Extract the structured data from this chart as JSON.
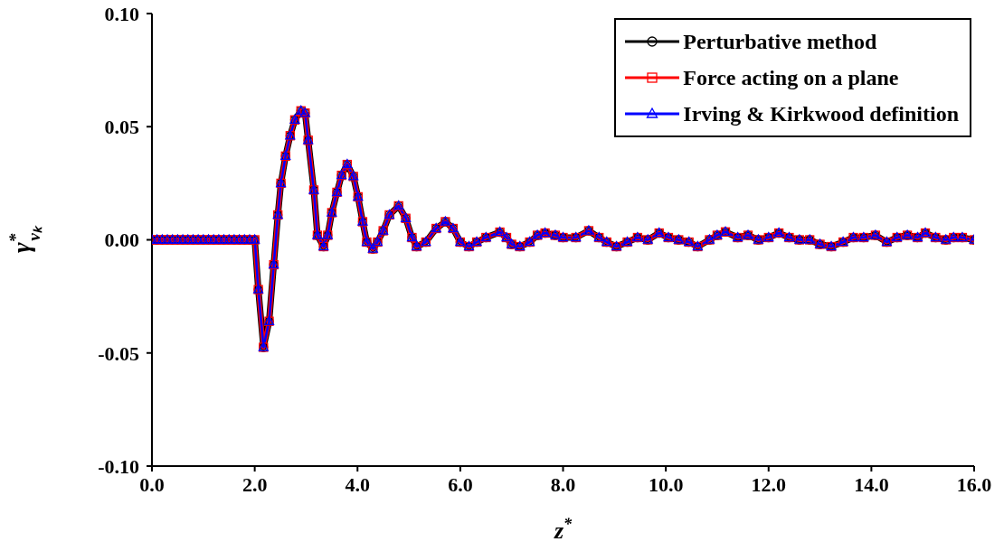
{
  "chart_data": {
    "type": "line",
    "xlabel": "z$^{*}$",
    "ylabel": "γ$^{*}$$_{vₖ}$",
    "x": [
      0,
      0.1,
      0.2,
      0.3,
      0.4,
      0.5,
      0.6,
      0.7,
      0.8,
      0.9,
      1.0,
      1.1,
      1.2,
      1.3,
      1.4,
      1.5,
      1.6,
      1.7,
      1.8,
      1.9,
      2.0,
      2.07,
      2.17,
      2.28,
      2.37,
      2.45,
      2.51,
      2.6,
      2.69,
      2.78,
      2.9,
      2.98,
      3.04,
      3.15,
      3.22,
      3.34,
      3.42,
      3.5,
      3.6,
      3.69,
      3.8,
      3.92,
      4.01,
      4.1,
      4.18,
      4.3,
      4.39,
      4.5,
      4.62,
      4.8,
      4.94,
      5.06,
      5.15,
      5.33,
      5.53,
      5.71,
      5.86,
      6.0,
      6.17,
      6.32,
      6.5,
      6.77,
      6.9,
      7.0,
      7.16,
      7.35,
      7.5,
      7.65,
      7.85,
      8.0,
      8.25,
      8.5,
      8.7,
      8.85,
      9.04,
      9.25,
      9.45,
      9.65,
      9.87,
      10.05,
      10.25,
      10.45,
      10.62,
      10.85,
      11.0,
      11.16,
      11.4,
      11.6,
      11.8,
      12.0,
      12.2,
      12.4,
      12.6,
      12.8,
      13.0,
      13.22,
      13.45,
      13.65,
      13.85,
      14.08,
      14.3,
      14.5,
      14.7,
      14.9,
      15.05,
      15.25,
      15.45,
      15.6,
      15.77,
      16.0
    ],
    "series": [
      {
        "name": "Perturbative method",
        "color": "#000000",
        "marker": "circle",
        "values": [
          0,
          0,
          0,
          0,
          0,
          0,
          0,
          0,
          0,
          0,
          0,
          0,
          0,
          0,
          0,
          0,
          0,
          0,
          0,
          0,
          0,
          -0.022,
          -0.0475,
          -0.036,
          -0.011,
          0.011,
          0.025,
          0.037,
          0.046,
          0.053,
          0.057,
          0.056,
          0.044,
          0.022,
          0.002,
          -0.003,
          0.002,
          0.012,
          0.021,
          0.0285,
          0.0333,
          0.028,
          0.019,
          0.008,
          -0.001,
          -0.004,
          -0.001,
          0.004,
          0.011,
          0.015,
          0.0095,
          0.001,
          -0.003,
          -0.001,
          0.005,
          0.008,
          0.005,
          -0.001,
          -0.003,
          -0.001,
          0.001,
          0.0034,
          0.001,
          -0.002,
          -0.003,
          -0.001,
          0.002,
          0.003,
          0.002,
          0.001,
          0.001,
          0.004,
          0.001,
          -0.001,
          -0.003,
          -0.001,
          0.001,
          0,
          0.003,
          0.001,
          0,
          -0.001,
          -0.003,
          0,
          0.002,
          0.0035,
          0.001,
          0.002,
          0,
          0.001,
          0.003,
          0.001,
          0,
          0,
          -0.002,
          -0.003,
          -0.001,
          0.001,
          0.001,
          0.002,
          -0.001,
          0.001,
          0.002,
          0.001,
          0.003,
          0.001,
          0,
          0.001,
          0.001,
          0
        ]
      },
      {
        "name": "Force acting on a plane",
        "color": "#ff0000",
        "marker": "square",
        "values": [
          0,
          0,
          0,
          0,
          0,
          0,
          0,
          0,
          0,
          0,
          0,
          0,
          0,
          0,
          0,
          0,
          0,
          0,
          0,
          0,
          0,
          -0.022,
          -0.0475,
          -0.036,
          -0.011,
          0.011,
          0.025,
          0.037,
          0.046,
          0.053,
          0.057,
          0.056,
          0.044,
          0.022,
          0.002,
          -0.003,
          0.002,
          0.012,
          0.021,
          0.0285,
          0.0333,
          0.028,
          0.019,
          0.008,
          -0.001,
          -0.004,
          -0.001,
          0.004,
          0.011,
          0.015,
          0.0095,
          0.001,
          -0.003,
          -0.001,
          0.005,
          0.008,
          0.005,
          -0.001,
          -0.003,
          -0.001,
          0.001,
          0.0034,
          0.001,
          -0.002,
          -0.003,
          -0.001,
          0.002,
          0.003,
          0.002,
          0.001,
          0.001,
          0.004,
          0.001,
          -0.001,
          -0.003,
          -0.001,
          0.001,
          0,
          0.003,
          0.001,
          0,
          -0.001,
          -0.003,
          0,
          0.002,
          0.0035,
          0.001,
          0.002,
          0,
          0.001,
          0.003,
          0.001,
          0,
          0,
          -0.002,
          -0.003,
          -0.001,
          0.001,
          0.001,
          0.002,
          -0.001,
          0.001,
          0.002,
          0.001,
          0.003,
          0.001,
          0,
          0.001,
          0.001,
          0
        ]
      },
      {
        "name": "Irving & Kirkwood definition",
        "color": "#0000ff",
        "marker": "triangle",
        "values": [
          0,
          0,
          0,
          0,
          0,
          0,
          0,
          0,
          0,
          0,
          0,
          0,
          0,
          0,
          0,
          0,
          0,
          0,
          0,
          0,
          0,
          -0.022,
          -0.0475,
          -0.036,
          -0.011,
          0.011,
          0.025,
          0.037,
          0.046,
          0.053,
          0.057,
          0.056,
          0.044,
          0.022,
          0.002,
          -0.003,
          0.002,
          0.012,
          0.021,
          0.0285,
          0.0333,
          0.028,
          0.019,
          0.008,
          -0.001,
          -0.004,
          -0.001,
          0.004,
          0.011,
          0.015,
          0.0095,
          0.001,
          -0.003,
          -0.001,
          0.005,
          0.008,
          0.005,
          -0.001,
          -0.003,
          -0.001,
          0.001,
          0.0034,
          0.001,
          -0.002,
          -0.003,
          -0.001,
          0.002,
          0.003,
          0.002,
          0.001,
          0.001,
          0.004,
          0.001,
          -0.001,
          -0.003,
          -0.001,
          0.001,
          0,
          0.003,
          0.001,
          0,
          -0.001,
          -0.003,
          0,
          0.002,
          0.0035,
          0.001,
          0.002,
          0,
          0.001,
          0.003,
          0.001,
          0,
          0,
          -0.002,
          -0.003,
          -0.001,
          0.001,
          0.001,
          0.002,
          -0.001,
          0.001,
          0.002,
          0.001,
          0.003,
          0.001,
          0,
          0.001,
          0.001,
          0
        ]
      }
    ],
    "xlim": [
      0,
      16
    ],
    "xticks": [
      {
        "value": 0,
        "label": "0.0"
      },
      {
        "value": 2,
        "label": "2.0"
      },
      {
        "value": 4,
        "label": "4.0"
      },
      {
        "value": 6,
        "label": "6.0"
      },
      {
        "value": 8,
        "label": "8.0"
      },
      {
        "value": 10,
        "label": "10.0"
      },
      {
        "value": 12,
        "label": "12.0"
      },
      {
        "value": 14,
        "label": "14.0"
      },
      {
        "value": 16,
        "label": "16.0"
      }
    ],
    "ylim": [
      -0.1,
      0.1
    ],
    "yticks": [
      {
        "value": -0.1,
        "label": "-0.10"
      },
      {
        "value": -0.05,
        "label": "-0.05"
      },
      {
        "value": 0,
        "label": "0.00"
      },
      {
        "value": 0.05,
        "label": "0.05"
      },
      {
        "value": 0.1,
        "label": "0.10"
      }
    ],
    "grid": false,
    "legend": "top right",
    "line_style": "solid"
  }
}
